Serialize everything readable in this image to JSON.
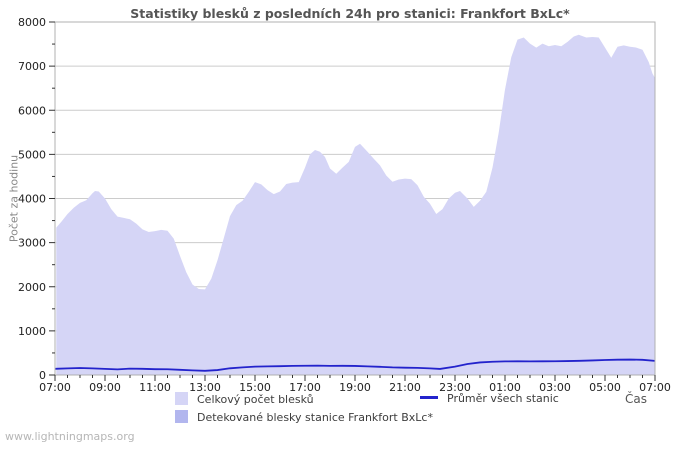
{
  "title": "Statistiky blesků z posledních 24h pro stanici: Frankfort BxLc*",
  "y_axis": {
    "label": "Počet za hodinu",
    "min": 0,
    "max": 8000,
    "major_step": 1000,
    "minor_step": 500,
    "tick_labels": [
      "0",
      "1000",
      "2000",
      "3000",
      "4000",
      "5000",
      "6000",
      "7000",
      "8000"
    ]
  },
  "x_axis": {
    "label": "Čas",
    "tick_labels": [
      "07:00",
      "09:00",
      "11:00",
      "13:00",
      "15:00",
      "17:00",
      "19:00",
      "21:00",
      "23:00",
      "01:00",
      "03:00",
      "05:00",
      "07:00"
    ],
    "span_hours": 24,
    "major_step_hours": 2,
    "minor_step_hours": 0.5
  },
  "legend": {
    "items": [
      {
        "label": "Celkový počet blesků",
        "swatch": "area",
        "color": "#d5d5f6"
      },
      {
        "label": "Detekované blesky stanice Frankfort BxLc*",
        "swatch": "area",
        "color": "#b2b6ee"
      },
      {
        "label": "Průměr všech stanic",
        "swatch": "line",
        "color": "#2323cc"
      }
    ]
  },
  "footer": {
    "text": "www.lightningmaps.org"
  },
  "colors": {
    "total_area": "#d5d5f6",
    "detected_area": "#b2b6ee",
    "average_line": "#2323cc",
    "gridline": "#cccccc",
    "plot_border": "#b0b0b0",
    "plot_bg": "#ffffff",
    "tick_mark": "#333333",
    "tick_text": "#222222",
    "title_text": "#555555",
    "axis_label_text": "#888888",
    "legend_text": "#3d3d3d",
    "footer_text": "#b6b6b6"
  },
  "chart_data": {
    "type": "area",
    "title": "Statistiky blesků z posledních 24h pro stanici: Frankfort BxLc*",
    "xlabel": "Čas",
    "ylabel": "Počet za hodinu",
    "ylim": [
      0,
      8000
    ],
    "x_unit": "hours after 07:00 (24h span)",
    "x_tick_labels": [
      "07:00",
      "09:00",
      "11:00",
      "13:00",
      "15:00",
      "17:00",
      "19:00",
      "21:00",
      "23:00",
      "01:00",
      "03:00",
      "05:00",
      "07:00"
    ],
    "grid": "horizontal only",
    "legend_position": "below chart",
    "series": [
      {
        "name": "Celkový počet blesků",
        "type": "area",
        "color": "#d5d5f6",
        "points": [
          [
            0.05,
            3340
          ],
          [
            0.25,
            3470
          ],
          [
            0.5,
            3650
          ],
          [
            0.75,
            3790
          ],
          [
            1,
            3900
          ],
          [
            1.25,
            3960
          ],
          [
            1.5,
            4120
          ],
          [
            1.6,
            4170
          ],
          [
            1.75,
            4160
          ],
          [
            2,
            4000
          ],
          [
            2.25,
            3760
          ],
          [
            2.5,
            3590
          ],
          [
            2.75,
            3560
          ],
          [
            3,
            3530
          ],
          [
            3.25,
            3430
          ],
          [
            3.5,
            3300
          ],
          [
            3.75,
            3240
          ],
          [
            4,
            3260
          ],
          [
            4.25,
            3290
          ],
          [
            4.5,
            3270
          ],
          [
            4.75,
            3090
          ],
          [
            5,
            2700
          ],
          [
            5.25,
            2330
          ],
          [
            5.5,
            2050
          ],
          [
            5.75,
            1950
          ],
          [
            6,
            1940
          ],
          [
            6.25,
            2180
          ],
          [
            6.5,
            2600
          ],
          [
            6.75,
            3100
          ],
          [
            7,
            3600
          ],
          [
            7.25,
            3850
          ],
          [
            7.5,
            3950
          ],
          [
            7.75,
            4150
          ],
          [
            8,
            4370
          ],
          [
            8.25,
            4320
          ],
          [
            8.5,
            4190
          ],
          [
            8.75,
            4100
          ],
          [
            9,
            4160
          ],
          [
            9.25,
            4330
          ],
          [
            9.5,
            4360
          ],
          [
            9.75,
            4370
          ],
          [
            10,
            4700
          ],
          [
            10.2,
            5000
          ],
          [
            10.4,
            5100
          ],
          [
            10.6,
            5060
          ],
          [
            10.8,
            4940
          ],
          [
            11,
            4680
          ],
          [
            11.25,
            4560
          ],
          [
            11.5,
            4700
          ],
          [
            11.75,
            4830
          ],
          [
            12,
            5170
          ],
          [
            12.2,
            5240
          ],
          [
            12.5,
            5060
          ],
          [
            12.75,
            4900
          ],
          [
            13,
            4750
          ],
          [
            13.25,
            4520
          ],
          [
            13.5,
            4380
          ],
          [
            13.75,
            4430
          ],
          [
            14,
            4450
          ],
          [
            14.25,
            4440
          ],
          [
            14.5,
            4300
          ],
          [
            14.75,
            4040
          ],
          [
            15,
            3880
          ],
          [
            15.25,
            3650
          ],
          [
            15.5,
            3760
          ],
          [
            15.75,
            4000
          ],
          [
            16,
            4130
          ],
          [
            16.2,
            4170
          ],
          [
            16.5,
            4000
          ],
          [
            16.75,
            3810
          ],
          [
            17,
            3950
          ],
          [
            17.25,
            4150
          ],
          [
            17.5,
            4700
          ],
          [
            17.75,
            5500
          ],
          [
            18,
            6470
          ],
          [
            18.25,
            7200
          ],
          [
            18.5,
            7600
          ],
          [
            18.75,
            7650
          ],
          [
            19,
            7510
          ],
          [
            19.25,
            7420
          ],
          [
            19.5,
            7510
          ],
          [
            19.75,
            7450
          ],
          [
            20,
            7480
          ],
          [
            20.25,
            7450
          ],
          [
            20.5,
            7550
          ],
          [
            20.75,
            7670
          ],
          [
            20.95,
            7710
          ],
          [
            21.25,
            7650
          ],
          [
            21.5,
            7660
          ],
          [
            21.75,
            7650
          ],
          [
            22,
            7420
          ],
          [
            22.25,
            7190
          ],
          [
            22.5,
            7440
          ],
          [
            22.75,
            7470
          ],
          [
            23,
            7440
          ],
          [
            23.25,
            7420
          ],
          [
            23.5,
            7370
          ],
          [
            23.75,
            7090
          ],
          [
            23.9,
            6830
          ],
          [
            24,
            6730
          ]
        ]
      },
      {
        "name": "Detekované blesky stanice Frankfort BxLc*",
        "type": "area",
        "color": "#b2b6ee",
        "points": [],
        "note": "no separately distinguishable area visible in the screenshot"
      },
      {
        "name": "Průměr všech stanic",
        "type": "line",
        "color": "#2323cc",
        "points": [
          [
            0,
            140
          ],
          [
            0.5,
            150
          ],
          [
            1,
            158
          ],
          [
            1.5,
            150
          ],
          [
            2,
            138
          ],
          [
            2.5,
            128
          ],
          [
            3,
            145
          ],
          [
            3.5,
            140
          ],
          [
            4,
            132
          ],
          [
            4.5,
            130
          ],
          [
            5,
            118
          ],
          [
            5.5,
            104
          ],
          [
            6,
            95
          ],
          [
            6.5,
            112
          ],
          [
            7,
            152
          ],
          [
            7.5,
            172
          ],
          [
            8,
            190
          ],
          [
            8.5,
            196
          ],
          [
            9,
            200
          ],
          [
            9.5,
            206
          ],
          [
            10,
            210
          ],
          [
            10.5,
            212
          ],
          [
            11,
            206
          ],
          [
            11.5,
            208
          ],
          [
            12,
            205
          ],
          [
            12.5,
            196
          ],
          [
            13,
            186
          ],
          [
            13.5,
            172
          ],
          [
            14,
            166
          ],
          [
            14.5,
            162
          ],
          [
            15,
            150
          ],
          [
            15.4,
            138
          ],
          [
            16,
            190
          ],
          [
            16.5,
            250
          ],
          [
            17,
            285
          ],
          [
            17.5,
            300
          ],
          [
            18,
            308
          ],
          [
            18.5,
            310
          ],
          [
            19,
            308
          ],
          [
            19.5,
            310
          ],
          [
            20,
            312
          ],
          [
            20.5,
            316
          ],
          [
            21,
            322
          ],
          [
            21.5,
            330
          ],
          [
            22,
            340
          ],
          [
            22.5,
            347
          ],
          [
            23,
            350
          ],
          [
            23.5,
            344
          ],
          [
            24,
            320
          ]
        ]
      }
    ]
  }
}
